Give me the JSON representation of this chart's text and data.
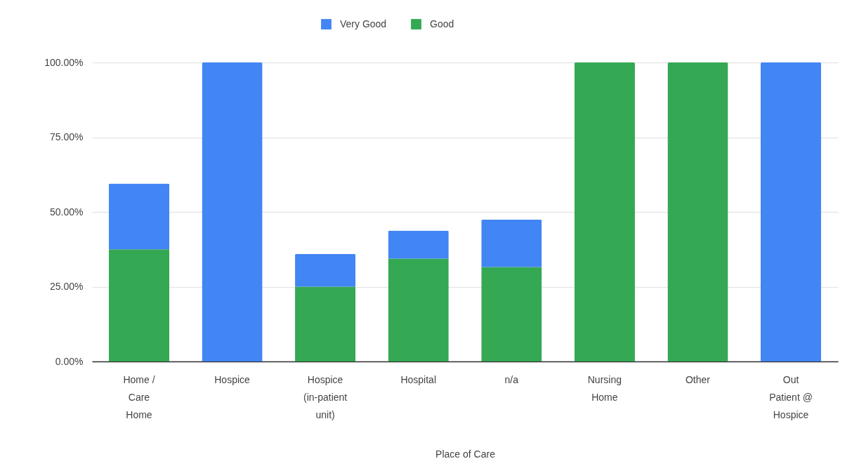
{
  "chart_data": {
    "type": "bar",
    "xlabel": "Place of Care",
    "categories": [
      "Home / Care Home",
      "Hospice",
      "Hospice (in-patient unit)",
      "Hospital",
      "n/a",
      "Nursing Home",
      "Other",
      "Out Patient @ Hospice"
    ],
    "series": [
      {
        "name": "Good",
        "color": "#34a853",
        "values": [
          37.5,
          null,
          25,
          34.4,
          31.6,
          100,
          100,
          null
        ]
      },
      {
        "name": "Very Good",
        "color": "#4285f4",
        "values": [
          22,
          100,
          11,
          9.4,
          15.8,
          null,
          null,
          100
        ]
      }
    ],
    "stacked": true,
    "ylim": [
      0,
      100
    ],
    "yticks": [
      {
        "value": 0,
        "label": "0.00%"
      },
      {
        "value": 25,
        "label": "25.00%"
      },
      {
        "value": 50,
        "label": "50.00%"
      },
      {
        "value": 75,
        "label": "75.00%"
      },
      {
        "value": 100,
        "label": "100.00%"
      }
    ],
    "grid": "y",
    "legend": "top"
  }
}
